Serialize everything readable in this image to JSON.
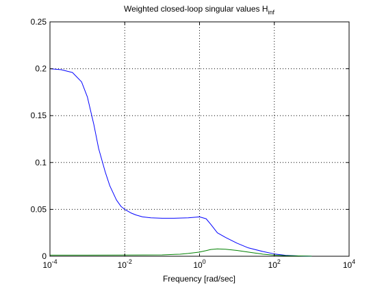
{
  "chart_data": {
    "type": "line",
    "title": "Weighted closed-loop singular values H",
    "title_subscript": "inf",
    "xlabel": "Frequency [rad/sec]",
    "ylabel": "",
    "x_scale": "log",
    "xlim": [
      0.0001,
      10000
    ],
    "ylim": [
      0,
      0.25
    ],
    "x_ticks": [
      {
        "value": 0.0001,
        "base": "10",
        "exp": "-4"
      },
      {
        "value": 0.01,
        "base": "10",
        "exp": "-2"
      },
      {
        "value": 1,
        "base": "10",
        "exp": "0"
      },
      {
        "value": 100,
        "base": "10",
        "exp": "2"
      },
      {
        "value": 10000,
        "base": "10",
        "exp": "4"
      }
    ],
    "y_ticks": [
      "0",
      "0.05",
      "0.1",
      "0.15",
      "0.2",
      "0.25"
    ],
    "grid": true,
    "series": [
      {
        "color": "#0000ff",
        "x": [
          0.0001,
          0.0002,
          0.0004,
          0.0007,
          0.001,
          0.0015,
          0.002,
          0.003,
          0.004,
          0.006,
          0.008,
          0.01,
          0.015,
          0.02,
          0.03,
          0.05,
          0.1,
          0.2,
          0.5,
          1,
          1.5,
          2,
          3,
          5,
          10,
          20,
          50,
          100,
          200,
          500,
          1000
        ],
        "y": [
          0.2,
          0.199,
          0.196,
          0.186,
          0.17,
          0.14,
          0.115,
          0.09,
          0.075,
          0.06,
          0.053,
          0.05,
          0.046,
          0.044,
          0.042,
          0.041,
          0.0405,
          0.0405,
          0.041,
          0.042,
          0.04,
          0.034,
          0.025,
          0.02,
          0.014,
          0.009,
          0.005,
          0.0025,
          0.001,
          0.0003,
          0.0001
        ]
      },
      {
        "color": "#008000",
        "x": [
          0.0001,
          0.001,
          0.01,
          0.1,
          0.3,
          0.5,
          1,
          1.5,
          2,
          3,
          5,
          10,
          20,
          50,
          100,
          200,
          1000
        ],
        "y": [
          0.0012,
          0.0012,
          0.0013,
          0.0015,
          0.0022,
          0.003,
          0.0045,
          0.006,
          0.0072,
          0.0078,
          0.0075,
          0.0062,
          0.0045,
          0.0022,
          0.0012,
          0.0006,
          0.0001
        ]
      }
    ]
  }
}
